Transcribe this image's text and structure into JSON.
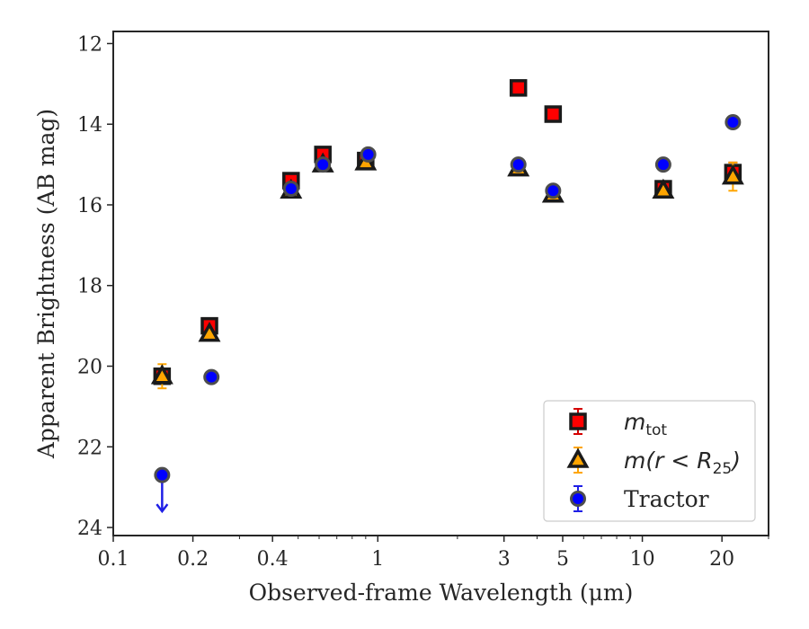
{
  "chart_data": {
    "type": "scatter",
    "title": "",
    "xlabel": "Observed-frame Wavelength (μm)",
    "ylabel": "Apparent Brightness (AB mag)",
    "xscale": "log",
    "yaxis_inverted": true,
    "xlim": [
      0.1,
      30
    ],
    "ylim": [
      24.2,
      11.7
    ],
    "xticks": [
      {
        "value": 0.1,
        "label": "0.1"
      },
      {
        "value": 0.2,
        "label": "0.2"
      },
      {
        "value": 0.4,
        "label": "0.4"
      },
      {
        "value": 1,
        "label": "1"
      },
      {
        "value": 3,
        "label": "3"
      },
      {
        "value": 5,
        "label": "5"
      },
      {
        "value": 10,
        "label": "10"
      },
      {
        "value": 20,
        "label": "20"
      }
    ],
    "yticks": [
      {
        "value": 12,
        "label": "12"
      },
      {
        "value": 14,
        "label": "14"
      },
      {
        "value": 16,
        "label": "16"
      },
      {
        "value": 18,
        "label": "18"
      },
      {
        "value": 20,
        "label": "20"
      },
      {
        "value": 22,
        "label": "22"
      },
      {
        "value": 24,
        "label": "24"
      }
    ],
    "legend_position": "lower-right",
    "grid": false,
    "series": [
      {
        "name": "m_tot",
        "legend": {
          "main": "m",
          "sub": "tot",
          "rest": ""
        },
        "marker": "square",
        "color": "#ff0000",
        "edgecolor": "#1a1a1a",
        "errcolor": "#d40000",
        "points": [
          {
            "x": 0.153,
            "y": 20.25,
            "err": 0.0
          },
          {
            "x": 0.231,
            "y": 19.0,
            "err": 0.0
          },
          {
            "x": 0.47,
            "y": 15.4,
            "err": 0.0
          },
          {
            "x": 0.62,
            "y": 14.75,
            "err": 0.0
          },
          {
            "x": 0.9,
            "y": 14.9,
            "err": 0.0
          },
          {
            "x": 3.4,
            "y": 13.1,
            "err": 0.0
          },
          {
            "x": 4.6,
            "y": 13.75,
            "err": 0.0
          },
          {
            "x": 12.0,
            "y": 15.6,
            "err": 0.0
          },
          {
            "x": 22.0,
            "y": 15.2,
            "err": 0.25
          }
        ]
      },
      {
        "name": "m(r < R_25)",
        "legend": {
          "main": "m(r < R",
          "sub": "25",
          "rest": ")"
        },
        "marker": "triangle",
        "color": "#ffa500",
        "edgecolor": "#1a1a1a",
        "errcolor": "#ffa500",
        "points": [
          {
            "x": 0.153,
            "y": 20.25,
            "err": 0.3
          },
          {
            "x": 0.231,
            "y": 19.2,
            "err": 0.0
          },
          {
            "x": 0.47,
            "y": 15.65,
            "err": 0.0
          },
          {
            "x": 0.62,
            "y": 15.0,
            "err": 0.0
          },
          {
            "x": 0.9,
            "y": 14.95,
            "err": 0.0
          },
          {
            "x": 3.4,
            "y": 15.1,
            "err": 0.0
          },
          {
            "x": 4.6,
            "y": 15.75,
            "err": 0.0
          },
          {
            "x": 12.0,
            "y": 15.65,
            "err": 0.0
          },
          {
            "x": 22.0,
            "y": 15.3,
            "err": 0.35
          }
        ]
      },
      {
        "name": "Tractor",
        "legend": {
          "main": "Tractor",
          "sub": "",
          "rest": ""
        },
        "marker": "circle",
        "color": "#0000ff",
        "edgecolor": "#4d4d4d",
        "errcolor": "#1f1fe6",
        "points": [
          {
            "x": 0.153,
            "y": 22.7,
            "err": 0.0,
            "upper_limit": true,
            "arrow_to": 23.6
          },
          {
            "x": 0.235,
            "y": 20.27,
            "err": 0.0
          },
          {
            "x": 0.47,
            "y": 15.6,
            "err": 0.0
          },
          {
            "x": 0.62,
            "y": 15.0,
            "err": 0.0
          },
          {
            "x": 0.92,
            "y": 14.75,
            "err": 0.0
          },
          {
            "x": 3.4,
            "y": 15.0,
            "err": 0.0
          },
          {
            "x": 4.6,
            "y": 15.65,
            "err": 0.0
          },
          {
            "x": 12.0,
            "y": 15.0,
            "err": 0.0
          },
          {
            "x": 22.0,
            "y": 13.95,
            "err": 0.0
          }
        ]
      }
    ]
  }
}
